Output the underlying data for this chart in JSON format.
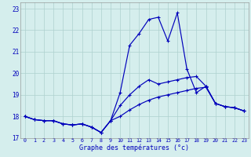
{
  "xlabel": "Graphe des températures (°c)",
  "bg_color": "#d5eeed",
  "grid_color": "#aed0ce",
  "line_color": "#0000bb",
  "hours": [
    0,
    1,
    2,
    3,
    4,
    5,
    6,
    7,
    8,
    9,
    10,
    11,
    12,
    13,
    14,
    15,
    16,
    17,
    18,
    19,
    20,
    21,
    22,
    23
  ],
  "curve_high": [
    18.0,
    17.85,
    17.8,
    17.8,
    17.65,
    17.6,
    17.65,
    17.5,
    17.25,
    17.8,
    19.1,
    21.3,
    21.85,
    22.5,
    22.6,
    21.5,
    22.8,
    20.2,
    19.1,
    19.4,
    18.6,
    18.45,
    18.4,
    18.25
  ],
  "curve_mid": [
    18.0,
    17.85,
    17.8,
    17.8,
    17.65,
    17.6,
    17.65,
    17.5,
    17.25,
    17.8,
    18.5,
    19.0,
    19.4,
    19.7,
    19.5,
    19.6,
    19.7,
    19.8,
    19.85,
    19.4,
    18.6,
    18.45,
    18.4,
    18.25
  ],
  "curve_low": [
    18.0,
    17.85,
    17.8,
    17.8,
    17.65,
    17.6,
    17.65,
    17.5,
    17.25,
    17.8,
    18.0,
    18.3,
    18.55,
    18.75,
    18.9,
    19.0,
    19.1,
    19.2,
    19.3,
    19.35,
    18.6,
    18.45,
    18.4,
    18.25
  ],
  "ylim_min": 17.0,
  "ylim_max": 23.3,
  "yticks": [
    17,
    18,
    19,
    20,
    21,
    22,
    23
  ],
  "xlim_min": -0.5,
  "xlim_max": 23.5
}
